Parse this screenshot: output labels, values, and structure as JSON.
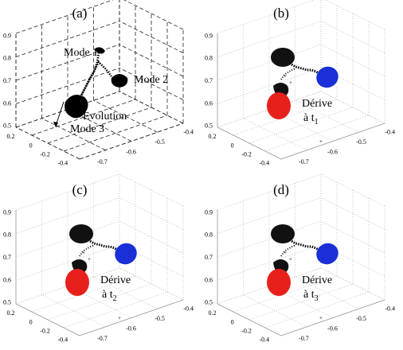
{
  "panels": [
    {
      "label": "(a)",
      "zticks": [
        "0.5",
        "0.6",
        "0.7",
        "0.8",
        "0.9"
      ],
      "xticks": [
        "0.2",
        "0",
        "-0.2",
        "-0.4"
      ],
      "yticks": [
        "-0.4",
        "-0.5",
        "-0.6",
        "-0.7"
      ],
      "annotations": [
        {
          "text": "Mode 1"
        },
        {
          "text": "Mode 2"
        },
        {
          "text": "Evolution"
        },
        {
          "text": "Mode 3"
        }
      ]
    },
    {
      "label": "(b)",
      "zticks": [
        "0.5",
        "0.6",
        "0.7",
        "0.8",
        "0.9"
      ],
      "xticks": [
        "0.2",
        "0",
        "-0.2",
        "-0.4"
      ],
      "yticks": [
        "-0.4",
        "-0.5",
        "-0.6",
        "-0.7"
      ],
      "annotations": [
        {
          "text": "Dérive"
        },
        {
          "text": "à t",
          "sub": "1"
        }
      ]
    },
    {
      "label": "(c)",
      "zticks": [
        "0.5",
        "0.6",
        "0.7",
        "0.8",
        "0.9"
      ],
      "xticks": [
        "0.2",
        "0",
        "-0.2",
        "-0.4"
      ],
      "yticks": [
        "-0.4",
        "-0.5",
        "-0.6",
        "-0.7"
      ],
      "annotations": [
        {
          "text": "Dérive"
        },
        {
          "text": "à t",
          "sub": "2"
        }
      ]
    },
    {
      "label": "(d)",
      "zticks": [
        "0.5",
        "0.6",
        "0.7",
        "0.8",
        "0.9"
      ],
      "xticks": [
        "0.2",
        "0",
        "-0.2",
        "-0.4"
      ],
      "yticks": [
        "-0.4",
        "-0.5",
        "-0.6",
        "-0.7"
      ],
      "annotations": [
        {
          "text": "Dérive"
        },
        {
          "text": "à t",
          "sub": "3"
        }
      ]
    }
  ]
}
